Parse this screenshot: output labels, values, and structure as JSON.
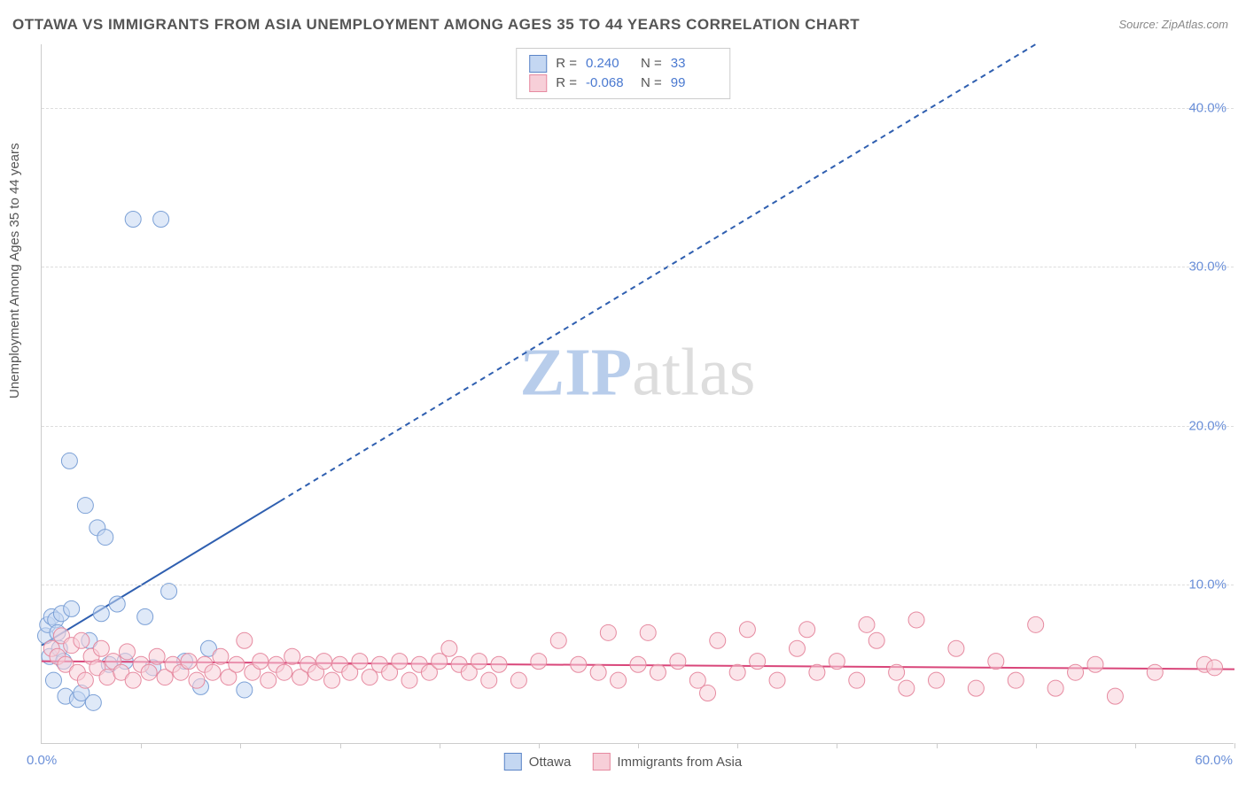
{
  "title": "OTTAWA VS IMMIGRANTS FROM ASIA UNEMPLOYMENT AMONG AGES 35 TO 44 YEARS CORRELATION CHART",
  "source": "Source: ZipAtlas.com",
  "ylabel": "Unemployment Among Ages 35 to 44 years",
  "watermark_a": "ZIP",
  "watermark_b": "atlas",
  "chart": {
    "type": "scatter",
    "xlim": [
      0,
      60
    ],
    "ylim": [
      0,
      44
    ],
    "x_tick_positions": [
      0,
      5,
      10,
      15,
      20,
      25,
      30,
      35,
      40,
      45,
      50,
      55,
      60
    ],
    "x_labels_shown": {
      "min": "0.0%",
      "max": "60.0%"
    },
    "y_ticks": [
      10,
      20,
      30,
      40
    ],
    "y_tick_labels": [
      "10.0%",
      "20.0%",
      "30.0%",
      "40.0%"
    ],
    "grid_color": "#dddddd",
    "axis_color": "#cccccc",
    "background_color": "#ffffff",
    "tick_label_color": "#6a8fd8",
    "tick_label_fontsize": 15,
    "title_color": "#555555",
    "title_fontsize": 17,
    "ylabel_fontsize": 15,
    "series": [
      {
        "name": "Ottawa",
        "color_fill": "#c4d7f2",
        "color_stroke": "#7ba0d6",
        "marker_radius": 9,
        "fill_opacity": 0.55,
        "trend_color": "#2f5fb0",
        "trend_width": 2,
        "trend_solid_xmax": 12,
        "trend_dash": "6,5",
        "trend_start": [
          0,
          6.2
        ],
        "trend_end": [
          50,
          44
        ],
        "points": [
          [
            0.2,
            6.8
          ],
          [
            0.3,
            7.5
          ],
          [
            0.4,
            5.5
          ],
          [
            0.5,
            8.0
          ],
          [
            0.6,
            4.0
          ],
          [
            0.7,
            7.8
          ],
          [
            0.8,
            7.0
          ],
          [
            0.9,
            6.0
          ],
          [
            1.0,
            8.2
          ],
          [
            1.1,
            5.2
          ],
          [
            1.2,
            3.0
          ],
          [
            1.4,
            17.8
          ],
          [
            1.5,
            8.5
          ],
          [
            1.8,
            2.8
          ],
          [
            2.0,
            3.2
          ],
          [
            2.2,
            15.0
          ],
          [
            2.4,
            6.5
          ],
          [
            2.6,
            2.6
          ],
          [
            2.8,
            13.6
          ],
          [
            3.0,
            8.2
          ],
          [
            3.2,
            13.0
          ],
          [
            3.4,
            5.0
          ],
          [
            3.8,
            8.8
          ],
          [
            4.2,
            5.2
          ],
          [
            4.6,
            33.0
          ],
          [
            5.2,
            8.0
          ],
          [
            5.6,
            4.8
          ],
          [
            6.0,
            33.0
          ],
          [
            6.4,
            9.6
          ],
          [
            7.2,
            5.2
          ],
          [
            8.0,
            3.6
          ],
          [
            8.4,
            6.0
          ],
          [
            10.2,
            3.4
          ]
        ]
      },
      {
        "name": "Immigrants from Asia",
        "color_fill": "#f7cfd8",
        "color_stroke": "#e68aa0",
        "marker_radius": 9,
        "fill_opacity": 0.55,
        "trend_color": "#d9467a",
        "trend_width": 2,
        "trend_solid_xmax": 60,
        "trend_dash": "",
        "trend_start": [
          0,
          5.2
        ],
        "trend_end": [
          60,
          4.7
        ],
        "points": [
          [
            0.5,
            6.0
          ],
          [
            0.8,
            5.5
          ],
          [
            1.0,
            6.8
          ],
          [
            1.2,
            5.0
          ],
          [
            1.5,
            6.2
          ],
          [
            1.8,
            4.5
          ],
          [
            2.0,
            6.5
          ],
          [
            2.2,
            4.0
          ],
          [
            2.5,
            5.5
          ],
          [
            2.8,
            4.8
          ],
          [
            3.0,
            6.0
          ],
          [
            3.3,
            4.2
          ],
          [
            3.6,
            5.2
          ],
          [
            4.0,
            4.5
          ],
          [
            4.3,
            5.8
          ],
          [
            4.6,
            4.0
          ],
          [
            5.0,
            5.0
          ],
          [
            5.4,
            4.5
          ],
          [
            5.8,
            5.5
          ],
          [
            6.2,
            4.2
          ],
          [
            6.6,
            5.0
          ],
          [
            7.0,
            4.5
          ],
          [
            7.4,
            5.2
          ],
          [
            7.8,
            4.0
          ],
          [
            8.2,
            5.0
          ],
          [
            8.6,
            4.5
          ],
          [
            9.0,
            5.5
          ],
          [
            9.4,
            4.2
          ],
          [
            9.8,
            5.0
          ],
          [
            10.2,
            6.5
          ],
          [
            10.6,
            4.5
          ],
          [
            11.0,
            5.2
          ],
          [
            11.4,
            4.0
          ],
          [
            11.8,
            5.0
          ],
          [
            12.2,
            4.5
          ],
          [
            12.6,
            5.5
          ],
          [
            13.0,
            4.2
          ],
          [
            13.4,
            5.0
          ],
          [
            13.8,
            4.5
          ],
          [
            14.2,
            5.2
          ],
          [
            14.6,
            4.0
          ],
          [
            15.0,
            5.0
          ],
          [
            15.5,
            4.5
          ],
          [
            16.0,
            5.2
          ],
          [
            16.5,
            4.2
          ],
          [
            17.0,
            5.0
          ],
          [
            17.5,
            4.5
          ],
          [
            18.0,
            5.2
          ],
          [
            18.5,
            4.0
          ],
          [
            19.0,
            5.0
          ],
          [
            19.5,
            4.5
          ],
          [
            20.0,
            5.2
          ],
          [
            20.5,
            6.0
          ],
          [
            21.0,
            5.0
          ],
          [
            21.5,
            4.5
          ],
          [
            22.0,
            5.2
          ],
          [
            22.5,
            4.0
          ],
          [
            23.0,
            5.0
          ],
          [
            24.0,
            4.0
          ],
          [
            25.0,
            5.2
          ],
          [
            26.0,
            6.5
          ],
          [
            27.0,
            5.0
          ],
          [
            28.0,
            4.5
          ],
          [
            28.5,
            7.0
          ],
          [
            29.0,
            4.0
          ],
          [
            30.0,
            5.0
          ],
          [
            30.5,
            7.0
          ],
          [
            31.0,
            4.5
          ],
          [
            32.0,
            5.2
          ],
          [
            33.0,
            4.0
          ],
          [
            33.5,
            3.2
          ],
          [
            34.0,
            6.5
          ],
          [
            35.0,
            4.5
          ],
          [
            35.5,
            7.2
          ],
          [
            36.0,
            5.2
          ],
          [
            37.0,
            4.0
          ],
          [
            38.0,
            6.0
          ],
          [
            38.5,
            7.2
          ],
          [
            39.0,
            4.5
          ],
          [
            40.0,
            5.2
          ],
          [
            41.0,
            4.0
          ],
          [
            41.5,
            7.5
          ],
          [
            42.0,
            6.5
          ],
          [
            43.0,
            4.5
          ],
          [
            43.5,
            3.5
          ],
          [
            44.0,
            7.8
          ],
          [
            45.0,
            4.0
          ],
          [
            46.0,
            6.0
          ],
          [
            47.0,
            3.5
          ],
          [
            48.0,
            5.2
          ],
          [
            49.0,
            4.0
          ],
          [
            50.0,
            7.5
          ],
          [
            51.0,
            3.5
          ],
          [
            52.0,
            4.5
          ],
          [
            53.0,
            5.0
          ],
          [
            54.0,
            3.0
          ],
          [
            56.0,
            4.5
          ],
          [
            58.5,
            5.0
          ],
          [
            59.0,
            4.8
          ]
        ]
      }
    ]
  },
  "stats_legend": {
    "rows": [
      {
        "swatch": "blue",
        "R": "0.240",
        "N": "33"
      },
      {
        "swatch": "pink",
        "R": "-0.068",
        "N": "99"
      }
    ],
    "label_R": "R =",
    "label_N": "N ="
  },
  "bottom_legend": {
    "items": [
      {
        "swatch": "blue",
        "label": "Ottawa"
      },
      {
        "swatch": "pink",
        "label": "Immigrants from Asia"
      }
    ]
  }
}
